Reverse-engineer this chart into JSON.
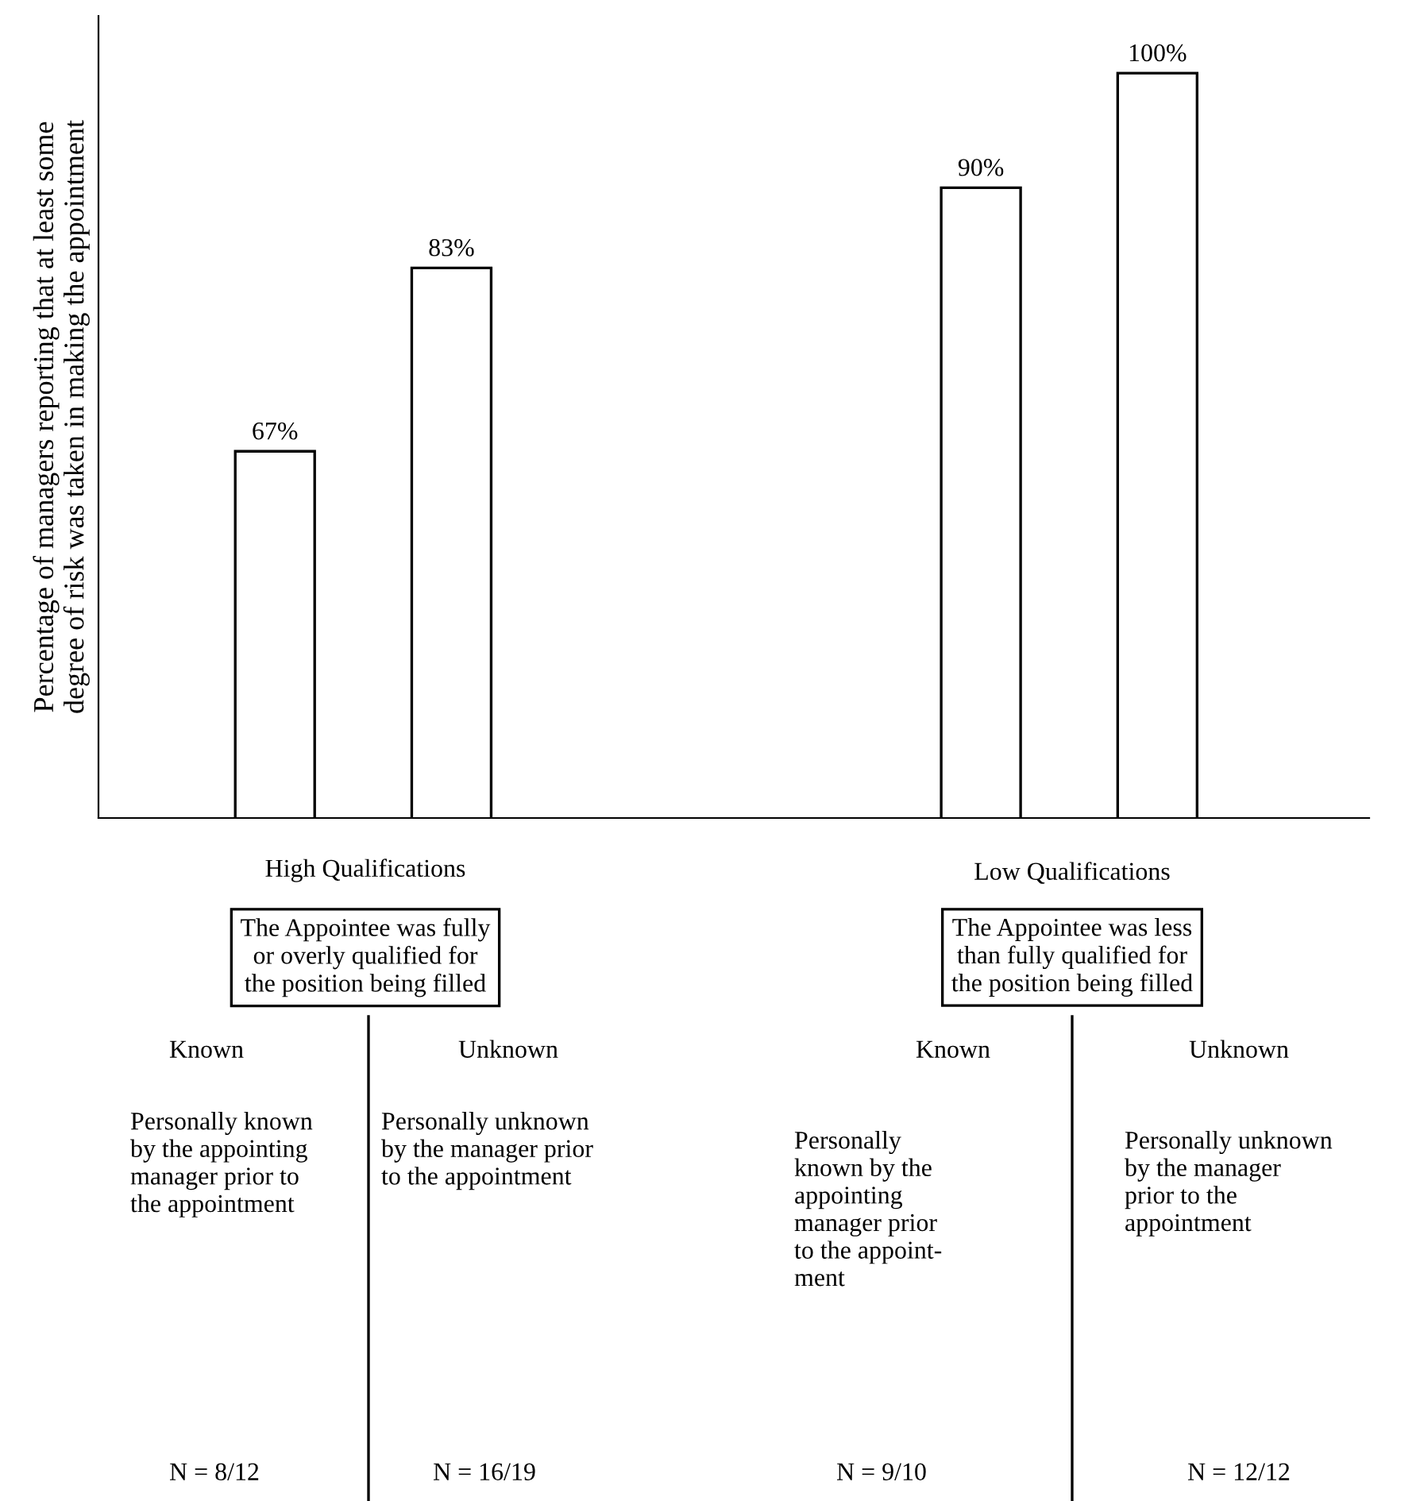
{
  "chart_data": {
    "type": "bar",
    "ylabel": "Percentage of managers reporting that at least some\ndegree of risk was taken in making the appointment",
    "categories": [
      "Known",
      "Unknown",
      null,
      null,
      "Known",
      "Unknown"
    ],
    "values": [
      67,
      83,
      null,
      null,
      90,
      100
    ],
    "value_labels": [
      "67%",
      "83%",
      null,
      null,
      "90%",
      "100%"
    ],
    "color": "#ffffff",
    "ylim": [
      35,
      105
    ],
    "legend": false,
    "annotations": [
      "High Qualifications",
      "The Appointee was fully\nor overly qualified for\nthe position being filled",
      "Low Qualifications",
      "The Appointee was less\nthan fully qualified for\nthe position being filled",
      "Personally known\nby the appointing\nmanager prior to\nthe appointment",
      "Personally unknown\nby the manager prior\nto the appointment",
      "Personally\nknown by the\nappointing\nmanager prior\nto the appoint-\nment",
      "Personally unknown\nby the manager\nprior to the\nappointment",
      "N = 8/12",
      "N = 16/19",
      "N = 9/10",
      "N = 12/12"
    ]
  }
}
